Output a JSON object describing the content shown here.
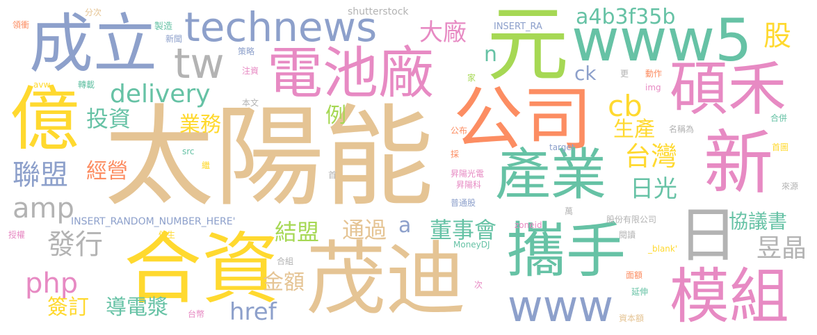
{
  "colors": {
    "tan": "#e5c494",
    "yellow": "#ffd92f",
    "green": "#66c2a5",
    "blue": "#8da0cb",
    "pink": "#e78ac3",
    "lime": "#a6d854",
    "orange": "#fc8d62",
    "gray": "#b3b3b3"
  },
  "words": [
    {
      "text": "太陽能",
      "color": "tan"
    },
    {
      "text": "合資",
      "color": "yellow"
    },
    {
      "text": "茂迪",
      "color": "tan"
    },
    {
      "text": "元",
      "color": "lime"
    },
    {
      "text": "公司",
      "color": "orange"
    },
    {
      "text": "新",
      "color": "pink"
    },
    {
      "text": "成立",
      "color": "blue"
    },
    {
      "text": "億",
      "color": "yellow"
    },
    {
      "text": "technews",
      "color": "blue"
    },
    {
      "text": "電池廠",
      "color": "pink"
    },
    {
      "text": "www5",
      "color": "green"
    },
    {
      "text": "攜手",
      "color": "green"
    },
    {
      "text": "產業",
      "color": "green"
    },
    {
      "text": "日",
      "color": "gray"
    },
    {
      "text": "碩禾",
      "color": "pink"
    },
    {
      "text": "模組",
      "color": "pink"
    },
    {
      "text": "www",
      "color": "blue"
    },
    {
      "text": "tw",
      "color": "gray"
    },
    {
      "text": "delivery",
      "color": "green"
    },
    {
      "text": "a4b3f35b",
      "color": "green"
    },
    {
      "text": "股",
      "color": "yellow"
    },
    {
      "text": "大廠",
      "color": "pink"
    },
    {
      "text": "amp",
      "color": "gray"
    },
    {
      "text": "聯盟",
      "color": "blue"
    },
    {
      "text": "php",
      "color": "pink"
    },
    {
      "text": "發行",
      "color": "gray"
    },
    {
      "text": "投資",
      "color": "green"
    },
    {
      "text": "業務",
      "color": "yellow"
    },
    {
      "text": "經營",
      "color": "orange"
    },
    {
      "text": "簽訂",
      "color": "yellow"
    },
    {
      "text": "導電漿",
      "color": "green"
    },
    {
      "text": "href",
      "color": "blue"
    },
    {
      "text": "金額",
      "color": "tan"
    },
    {
      "text": "結盟",
      "color": "lime"
    },
    {
      "text": "通過",
      "color": "tan"
    },
    {
      "text": "董事會",
      "color": "green"
    },
    {
      "text": "a",
      "color": "blue"
    },
    {
      "text": "n",
      "color": "green"
    },
    {
      "text": "ck",
      "color": "blue"
    },
    {
      "text": "例",
      "color": "lime"
    },
    {
      "text": "cb",
      "color": "yellow"
    },
    {
      "text": "生產",
      "color": "yellow"
    },
    {
      "text": "台灣",
      "color": "yellow"
    },
    {
      "text": "日光",
      "color": "green"
    },
    {
      "text": "協議書",
      "color": "green"
    },
    {
      "text": "昱晶",
      "color": "gray"
    },
    {
      "text": "shutterstock",
      "color": "gray"
    },
    {
      "text": "INSERT_RA",
      "color": "blue"
    },
    {
      "text": "INSERT_RANDOM_NUMBER_HERE'",
      "color": "blue"
    },
    {
      "text": "領衝",
      "color": "orange"
    },
    {
      "text": "分次",
      "color": "tan"
    },
    {
      "text": "製造",
      "color": "green"
    },
    {
      "text": "新聞",
      "color": "blue"
    },
    {
      "text": "策略",
      "color": "blue"
    },
    {
      "text": "注資",
      "color": "pink"
    },
    {
      "text": "家",
      "color": "lime"
    },
    {
      "text": "更",
      "color": "gray"
    },
    {
      "text": "動作",
      "color": "orange"
    },
    {
      "text": "img",
      "color": "pink"
    },
    {
      "text": "avw",
      "color": "yellow"
    },
    {
      "text": "轉載",
      "color": "green"
    },
    {
      "text": "本文",
      "color": "gray"
    },
    {
      "text": "公布",
      "color": "orange"
    },
    {
      "text": "名稱為",
      "color": "gray"
    },
    {
      "text": "合併",
      "color": "green"
    },
    {
      "text": "src",
      "color": "green"
    },
    {
      "text": "target",
      "color": "blue"
    },
    {
      "text": "首圖",
      "color": "yellow"
    },
    {
      "text": "繼",
      "color": "yellow"
    },
    {
      "text": "首",
      "color": "gray"
    },
    {
      "text": "採",
      "color": "orange"
    },
    {
      "text": "昇陽光電",
      "color": "pink"
    },
    {
      "text": "昇陽科",
      "color": "pink"
    },
    {
      "text": "來源",
      "color": "gray"
    },
    {
      "text": "普通股",
      "color": "blue"
    },
    {
      "text": "萬",
      "color": "gray"
    },
    {
      "text": "股份有限公司",
      "color": "gray"
    },
    {
      "text": "授權",
      "color": "pink"
    },
    {
      "text": "催生",
      "color": "yellow"
    },
    {
      "text": "zoneid",
      "color": "pink"
    },
    {
      "text": "MoneyDJ",
      "color": "green"
    },
    {
      "text": "閱讀",
      "color": "gray"
    },
    {
      "text": "_blank'",
      "color": "yellow"
    },
    {
      "text": "合組",
      "color": "gray"
    },
    {
      "text": "面額",
      "color": "orange"
    },
    {
      "text": "次",
      "color": "pink"
    },
    {
      "text": "延伸",
      "color": "green"
    },
    {
      "text": "台幣",
      "color": "pink"
    },
    {
      "text": "資本額",
      "color": "tan"
    }
  ]
}
